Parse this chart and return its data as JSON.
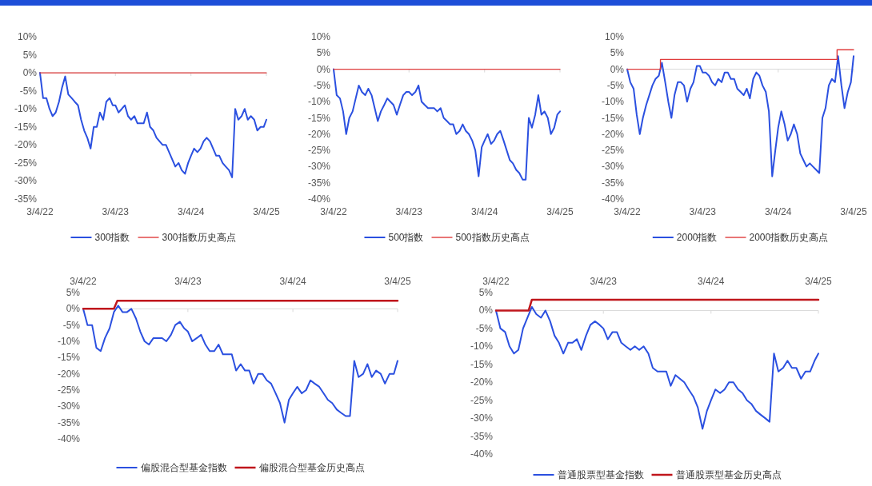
{
  "chart_data": [
    {
      "type": "line",
      "legend": "bottom",
      "x": [
        "2022-03-04",
        "2022-03-19",
        "2022-04-04",
        "2022-04-19",
        "2022-05-04",
        "2022-05-19",
        "2022-06-04",
        "2022-06-19",
        "2022-07-04",
        "2022-07-19",
        "2022-08-04",
        "2022-08-19",
        "2022-09-04",
        "2022-09-19",
        "2022-10-04",
        "2022-10-19",
        "2022-11-04",
        "2022-11-19",
        "2022-12-04",
        "2022-12-19",
        "2023-01-04",
        "2023-01-19",
        "2023-02-04",
        "2023-02-19",
        "2023-03-04",
        "2023-03-19",
        "2023-04-04",
        "2023-04-19",
        "2023-05-04",
        "2023-05-19",
        "2023-06-04",
        "2023-06-19",
        "2023-07-04",
        "2023-07-19",
        "2023-08-04",
        "2023-08-19",
        "2023-09-04",
        "2023-09-19",
        "2023-10-04",
        "2023-10-19",
        "2023-11-04",
        "2023-11-19",
        "2023-12-04",
        "2023-12-19",
        "2024-01-04",
        "2024-01-19",
        "2024-02-04",
        "2024-02-19",
        "2024-03-04",
        "2024-03-19",
        "2024-04-04",
        "2024-04-19",
        "2024-05-04",
        "2024-05-19",
        "2024-06-04",
        "2024-06-19",
        "2024-07-04",
        "2024-07-19",
        "2024-08-04",
        "2024-08-19",
        "2024-09-04",
        "2024-09-19",
        "2024-10-04",
        "2024-10-19",
        "2024-11-04",
        "2024-11-19",
        "2024-12-04",
        "2024-12-19",
        "2025-01-04",
        "2025-01-19",
        "2025-02-04",
        "2025-02-19",
        "2025-03-04"
      ],
      "xlim": [
        "2022-03-04",
        "2025-03-04"
      ],
      "xticks": [
        {
          "value": "2022-03-04",
          "label": "3/4/22"
        },
        {
          "value": "2023-03-04",
          "label": "3/4/23"
        },
        {
          "value": "2024-03-04",
          "label": "3/4/24"
        },
        {
          "value": "2025-03-04",
          "label": "3/4/25"
        }
      ],
      "ylim": [
        -35,
        10
      ],
      "yticks": [
        {
          "value": -35,
          "label": "-35%"
        },
        {
          "value": -30,
          "label": "-30%"
        },
        {
          "value": -25,
          "label": "-25%"
        },
        {
          "value": -20,
          "label": "-20%"
        },
        {
          "value": -15,
          "label": "-15%"
        },
        {
          "value": -10,
          "label": "-10%"
        },
        {
          "value": -5,
          "label": "-5%"
        },
        {
          "value": 0,
          "label": "0%"
        },
        {
          "value": 5,
          "label": "5%"
        },
        {
          "value": 10,
          "label": "10%"
        }
      ],
      "series": [
        {
          "name": "300指数",
          "type": "line",
          "color": "#2b50e0",
          "values": [
            0,
            -7,
            -7,
            -10,
            -12,
            -11,
            -8,
            -4,
            -1,
            -6,
            -7,
            -8,
            -9,
            -13,
            -16,
            -18,
            -21,
            -15,
            -15,
            -11,
            -13,
            -8,
            -7,
            -9,
            -9,
            -11,
            -10,
            -9,
            -12,
            -13,
            -12,
            -14,
            -14,
            -14,
            -11,
            -15,
            -16,
            -18,
            -19,
            -20,
            -20,
            -22,
            -24,
            -26,
            -25,
            -27,
            -28,
            -25,
            -23,
            -21,
            -22,
            -21,
            -19,
            -18,
            -19,
            -21,
            -23,
            -23,
            -25,
            -26,
            -27,
            -29,
            -10,
            -13,
            -12,
            -10,
            -13,
            -12,
            -13,
            -16,
            -15,
            -15,
            -13
          ]
        },
        {
          "name": "300指数历史高点",
          "type": "step",
          "color": "#e03c3c",
          "x": [
            "2022-03-04",
            "2025-03-04"
          ],
          "values": [
            0,
            0
          ]
        }
      ]
    },
    {
      "type": "line",
      "legend": "bottom",
      "x": [
        "2022-03-04",
        "2022-03-19",
        "2022-04-04",
        "2022-04-19",
        "2022-05-04",
        "2022-05-19",
        "2022-06-04",
        "2022-06-19",
        "2022-07-04",
        "2022-07-19",
        "2022-08-04",
        "2022-08-19",
        "2022-09-04",
        "2022-09-19",
        "2022-10-04",
        "2022-10-19",
        "2022-11-04",
        "2022-11-19",
        "2022-12-04",
        "2022-12-19",
        "2023-01-04",
        "2023-01-19",
        "2023-02-04",
        "2023-02-19",
        "2023-03-04",
        "2023-03-19",
        "2023-04-04",
        "2023-04-19",
        "2023-05-04",
        "2023-05-19",
        "2023-06-04",
        "2023-06-19",
        "2023-07-04",
        "2023-07-19",
        "2023-08-04",
        "2023-08-19",
        "2023-09-04",
        "2023-09-19",
        "2023-10-04",
        "2023-10-19",
        "2023-11-04",
        "2023-11-19",
        "2023-12-04",
        "2023-12-19",
        "2024-01-04",
        "2024-01-19",
        "2024-02-04",
        "2024-02-19",
        "2024-03-04",
        "2024-03-19",
        "2024-04-04",
        "2024-04-19",
        "2024-05-04",
        "2024-05-19",
        "2024-06-04",
        "2024-06-19",
        "2024-07-04",
        "2024-07-19",
        "2024-08-04",
        "2024-08-19",
        "2024-09-04",
        "2024-09-19",
        "2024-10-04",
        "2024-10-19",
        "2024-11-04",
        "2024-11-19",
        "2024-12-04",
        "2024-12-19",
        "2025-01-04",
        "2025-01-19",
        "2025-02-04",
        "2025-02-19",
        "2025-03-04"
      ],
      "xlim": [
        "2022-03-04",
        "2025-03-04"
      ],
      "xticks": [
        {
          "value": "2022-03-04",
          "label": "3/4/22"
        },
        {
          "value": "2023-03-04",
          "label": "3/4/23"
        },
        {
          "value": "2024-03-04",
          "label": "3/4/24"
        },
        {
          "value": "2025-03-04",
          "label": "3/4/25"
        }
      ],
      "ylim": [
        -40,
        10
      ],
      "yticks": [
        {
          "value": -40,
          "label": "-40%"
        },
        {
          "value": -35,
          "label": "-35%"
        },
        {
          "value": -30,
          "label": "-30%"
        },
        {
          "value": -25,
          "label": "-25%"
        },
        {
          "value": -20,
          "label": "-20%"
        },
        {
          "value": -15,
          "label": "-15%"
        },
        {
          "value": -10,
          "label": "-10%"
        },
        {
          "value": -5,
          "label": "-5%"
        },
        {
          "value": 0,
          "label": "0%"
        },
        {
          "value": 5,
          "label": "5%"
        },
        {
          "value": 10,
          "label": "10%"
        }
      ],
      "series": [
        {
          "name": "500指数",
          "type": "line",
          "color": "#2b50e0",
          "values": [
            0,
            -8,
            -9,
            -13,
            -20,
            -15,
            -13,
            -9,
            -5,
            -7,
            -8,
            -6,
            -8,
            -12,
            -16,
            -13,
            -11,
            -9,
            -10,
            -11,
            -14,
            -11,
            -8,
            -7,
            -7,
            -8,
            -7,
            -5,
            -10,
            -11,
            -12,
            -12,
            -12,
            -13,
            -12,
            -15,
            -16,
            -17,
            -17,
            -20,
            -19,
            -17,
            -19,
            -20,
            -22,
            -25,
            -33,
            -24,
            -22,
            -20,
            -23,
            -22,
            -20,
            -19,
            -22,
            -25,
            -28,
            -29,
            -31,
            -32,
            -34,
            -34,
            -15,
            -18,
            -14,
            -8,
            -14,
            -13,
            -15,
            -20,
            -18,
            -14,
            -13
          ]
        },
        {
          "name": "500指数历史高点",
          "type": "step",
          "color": "#e03c3c",
          "x": [
            "2022-03-04",
            "2025-03-04"
          ],
          "values": [
            0,
            0
          ]
        }
      ]
    },
    {
      "type": "line",
      "legend": "bottom",
      "x": [
        "2022-03-04",
        "2022-03-19",
        "2022-04-04",
        "2022-04-19",
        "2022-05-04",
        "2022-05-19",
        "2022-06-04",
        "2022-06-19",
        "2022-07-04",
        "2022-07-19",
        "2022-08-04",
        "2022-08-19",
        "2022-09-04",
        "2022-09-19",
        "2022-10-04",
        "2022-10-19",
        "2022-11-04",
        "2022-11-19",
        "2022-12-04",
        "2022-12-19",
        "2023-01-04",
        "2023-01-19",
        "2023-02-04",
        "2023-02-19",
        "2023-03-04",
        "2023-03-19",
        "2023-04-04",
        "2023-04-19",
        "2023-05-04",
        "2023-05-19",
        "2023-06-04",
        "2023-06-19",
        "2023-07-04",
        "2023-07-19",
        "2023-08-04",
        "2023-08-19",
        "2023-09-04",
        "2023-09-19",
        "2023-10-04",
        "2023-10-19",
        "2023-11-04",
        "2023-11-19",
        "2023-12-04",
        "2023-12-19",
        "2024-01-04",
        "2024-01-19",
        "2024-02-04",
        "2024-02-19",
        "2024-03-04",
        "2024-03-19",
        "2024-04-04",
        "2024-04-19",
        "2024-05-04",
        "2024-05-19",
        "2024-06-04",
        "2024-06-19",
        "2024-07-04",
        "2024-07-19",
        "2024-08-04",
        "2024-08-19",
        "2024-09-04",
        "2024-09-19",
        "2024-10-04",
        "2024-10-19",
        "2024-11-04",
        "2024-11-19",
        "2024-12-04",
        "2024-12-19",
        "2025-01-04",
        "2025-01-19",
        "2025-02-04",
        "2025-02-19",
        "2025-03-04"
      ],
      "xlim": [
        "2022-03-04",
        "2025-03-04"
      ],
      "xticks": [
        {
          "value": "2022-03-04",
          "label": "3/4/22"
        },
        {
          "value": "2023-03-04",
          "label": "3/4/23"
        },
        {
          "value": "2024-03-04",
          "label": "3/4/24"
        },
        {
          "value": "2025-03-04",
          "label": "3/4/25"
        }
      ],
      "ylim": [
        -40,
        10
      ],
      "yticks": [
        {
          "value": -40,
          "label": "-40%"
        },
        {
          "value": -35,
          "label": "-35%"
        },
        {
          "value": -30,
          "label": "-30%"
        },
        {
          "value": -25,
          "label": "-25%"
        },
        {
          "value": -20,
          "label": "-20%"
        },
        {
          "value": -15,
          "label": "-15%"
        },
        {
          "value": -10,
          "label": "-10%"
        },
        {
          "value": -5,
          "label": "-5%"
        },
        {
          "value": 0,
          "label": "0%"
        },
        {
          "value": 5,
          "label": "5%"
        },
        {
          "value": 10,
          "label": "10%"
        }
      ],
      "series": [
        {
          "name": "2000指数",
          "type": "line",
          "color": "#2b50e0",
          "values": [
            0,
            -4,
            -6,
            -14,
            -20,
            -15,
            -11,
            -8,
            -5,
            -3,
            -2,
            2,
            -4,
            -10,
            -15,
            -8,
            -4,
            -4,
            -5,
            -10,
            -6,
            -4,
            1,
            1,
            -1,
            -1,
            -2,
            -4,
            -5,
            -3,
            -4,
            -1,
            -1,
            -3,
            -3,
            -6,
            -7,
            -8,
            -6,
            -9,
            -3,
            -1,
            -2,
            -5,
            -7,
            -13,
            -33,
            -25,
            -18,
            -13,
            -17,
            -22,
            -20,
            -17,
            -20,
            -26,
            -28,
            -30,
            -29,
            -30,
            -31,
            -32,
            -15,
            -12,
            -5,
            -3,
            -4,
            4,
            -5,
            -12,
            -7,
            -4,
            4
          ]
        },
        {
          "name": "2000指数历史高点",
          "type": "step",
          "color": "#e03c3c",
          "x": [
            "2022-03-04",
            "2022-08-12",
            "2024-12-14",
            "2025-03-04"
          ],
          "values": [
            0,
            3,
            6,
            6
          ]
        }
      ]
    },
    {
      "type": "line",
      "legend": "bottom",
      "x": [
        "2022-03-04",
        "2022-03-19",
        "2022-04-04",
        "2022-04-19",
        "2022-05-04",
        "2022-05-19",
        "2022-06-04",
        "2022-06-19",
        "2022-07-04",
        "2022-07-19",
        "2022-08-04",
        "2022-08-19",
        "2022-09-04",
        "2022-09-19",
        "2022-10-04",
        "2022-10-19",
        "2022-11-04",
        "2022-11-19",
        "2022-12-04",
        "2022-12-19",
        "2023-01-04",
        "2023-01-19",
        "2023-02-04",
        "2023-02-19",
        "2023-03-04",
        "2023-03-19",
        "2023-04-04",
        "2023-04-19",
        "2023-05-04",
        "2023-05-19",
        "2023-06-04",
        "2023-06-19",
        "2023-07-04",
        "2023-07-19",
        "2023-08-04",
        "2023-08-19",
        "2023-09-04",
        "2023-09-19",
        "2023-10-04",
        "2023-10-19",
        "2023-11-04",
        "2023-11-19",
        "2023-12-04",
        "2023-12-19",
        "2024-01-04",
        "2024-01-19",
        "2024-02-04",
        "2024-02-19",
        "2024-03-04",
        "2024-03-19",
        "2024-04-04",
        "2024-04-19",
        "2024-05-04",
        "2024-05-19",
        "2024-06-04",
        "2024-06-19",
        "2024-07-04",
        "2024-07-19",
        "2024-08-04",
        "2024-08-19",
        "2024-09-04",
        "2024-09-19",
        "2024-10-04",
        "2024-10-19",
        "2024-11-04",
        "2024-11-19",
        "2024-12-04",
        "2024-12-19",
        "2025-01-04",
        "2025-01-19",
        "2025-02-04",
        "2025-02-19",
        "2025-03-04"
      ],
      "xlim": [
        "2022-03-04",
        "2025-03-04"
      ],
      "xticks": [
        {
          "value": "2022-03-04",
          "label": "3/4/22"
        },
        {
          "value": "2023-03-04",
          "label": "3/4/23"
        },
        {
          "value": "2024-03-04",
          "label": "3/4/24"
        },
        {
          "value": "2025-03-04",
          "label": "3/4/25"
        }
      ],
      "ylim": [
        -40,
        5
      ],
      "yticks": [
        {
          "value": -40,
          "label": "-40%"
        },
        {
          "value": -35,
          "label": "-35%"
        },
        {
          "value": -30,
          "label": "-30%"
        },
        {
          "value": -25,
          "label": "-25%"
        },
        {
          "value": -20,
          "label": "-20%"
        },
        {
          "value": -15,
          "label": "-15%"
        },
        {
          "value": -10,
          "label": "-10%"
        },
        {
          "value": -5,
          "label": "-5%"
        },
        {
          "value": 0,
          "label": "0%"
        },
        {
          "value": 5,
          "label": "5%"
        }
      ],
      "series": [
        {
          "name": "偏股混合型基金指数",
          "type": "line",
          "color": "#2b50e0",
          "values": [
            0,
            -5,
            -5,
            -12,
            -13,
            -9,
            -6,
            -1,
            1,
            -1,
            -1,
            0,
            -3,
            -7,
            -10,
            -11,
            -9,
            -9,
            -9,
            -10,
            -8,
            -5,
            -4,
            -6,
            -7,
            -10,
            -9,
            -8,
            -11,
            -13,
            -13,
            -11,
            -14,
            -14,
            -14,
            -19,
            -17,
            -19,
            -19,
            -23,
            -20,
            -20,
            -22,
            -23,
            -26,
            -29,
            -35,
            -28,
            -26,
            -24,
            -26,
            -25,
            -22,
            -23,
            -24,
            -26,
            -28,
            -29,
            -31,
            -32,
            -33,
            -33,
            -16,
            -21,
            -20,
            -17,
            -21,
            -19,
            -20,
            -23,
            -20,
            -20,
            -16
          ]
        },
        {
          "name": "偏股混合型基金历史高点",
          "type": "line",
          "color": "#c0161c",
          "x": [
            "2022-03-04",
            "2022-06-19",
            "2022-07-01",
            "2025-03-04"
          ],
          "values": [
            0,
            0,
            2.5,
            2.5
          ]
        }
      ]
    },
    {
      "type": "line",
      "legend": "bottom",
      "x": [
        "2022-03-04",
        "2022-03-19",
        "2022-04-04",
        "2022-04-19",
        "2022-05-04",
        "2022-05-19",
        "2022-06-04",
        "2022-06-19",
        "2022-07-04",
        "2022-07-19",
        "2022-08-04",
        "2022-08-19",
        "2022-09-04",
        "2022-09-19",
        "2022-10-04",
        "2022-10-19",
        "2022-11-04",
        "2022-11-19",
        "2022-12-04",
        "2022-12-19",
        "2023-01-04",
        "2023-01-19",
        "2023-02-04",
        "2023-02-19",
        "2023-03-04",
        "2023-03-19",
        "2023-04-04",
        "2023-04-19",
        "2023-05-04",
        "2023-05-19",
        "2023-06-04",
        "2023-06-19",
        "2023-07-04",
        "2023-07-19",
        "2023-08-04",
        "2023-08-19",
        "2023-09-04",
        "2023-09-19",
        "2023-10-04",
        "2023-10-19",
        "2023-11-04",
        "2023-11-19",
        "2023-12-04",
        "2023-12-19",
        "2024-01-04",
        "2024-01-19",
        "2024-02-04",
        "2024-02-19",
        "2024-03-04",
        "2024-03-19",
        "2024-04-04",
        "2024-04-19",
        "2024-05-04",
        "2024-05-19",
        "2024-06-04",
        "2024-06-19",
        "2024-07-04",
        "2024-07-19",
        "2024-08-04",
        "2024-08-19",
        "2024-09-04",
        "2024-09-19",
        "2024-10-04",
        "2024-10-19",
        "2024-11-04",
        "2024-11-19",
        "2024-12-04",
        "2024-12-19",
        "2025-01-04",
        "2025-01-19",
        "2025-02-04",
        "2025-02-19",
        "2025-03-04"
      ],
      "xlim": [
        "2022-03-04",
        "2025-03-04"
      ],
      "xticks": [
        {
          "value": "2022-03-04",
          "label": "3/4/22"
        },
        {
          "value": "2023-03-04",
          "label": "3/4/23"
        },
        {
          "value": "2024-03-04",
          "label": "3/4/24"
        },
        {
          "value": "2025-03-04",
          "label": "3/4/25"
        }
      ],
      "ylim": [
        -40,
        5
      ],
      "yticks": [
        {
          "value": -40,
          "label": "-40%"
        },
        {
          "value": -35,
          "label": "-35%"
        },
        {
          "value": -30,
          "label": "-30%"
        },
        {
          "value": -25,
          "label": "-25%"
        },
        {
          "value": -20,
          "label": "-20%"
        },
        {
          "value": -15,
          "label": "-15%"
        },
        {
          "value": -10,
          "label": "-10%"
        },
        {
          "value": -5,
          "label": "-5%"
        },
        {
          "value": 0,
          "label": "0%"
        },
        {
          "value": 5,
          "label": "5%"
        }
      ],
      "series": [
        {
          "name": "普通股票型基金指数",
          "type": "line",
          "color": "#2b50e0",
          "values": [
            0,
            -5,
            -6,
            -10,
            -12,
            -11,
            -5,
            -2,
            1,
            -1,
            -2,
            0,
            -3,
            -7,
            -9,
            -12,
            -9,
            -9,
            -8,
            -11,
            -7,
            -4,
            -3,
            -4,
            -5,
            -8,
            -6,
            -6,
            -9,
            -10,
            -11,
            -10,
            -11,
            -10,
            -12,
            -16,
            -17,
            -17,
            -17,
            -21,
            -18,
            -19,
            -20,
            -22,
            -24,
            -27,
            -33,
            -28,
            -25,
            -22,
            -23,
            -22,
            -20,
            -20,
            -22,
            -23,
            -25,
            -26,
            -28,
            -29,
            -30,
            -31,
            -12,
            -17,
            -16,
            -14,
            -16,
            -16,
            -19,
            -17,
            -17,
            -14,
            -12
          ]
        },
        {
          "name": "普通股票型基金历史高点",
          "type": "line",
          "color": "#c0161c",
          "x": [
            "2022-03-04",
            "2022-06-23",
            "2022-07-04",
            "2025-03-04"
          ],
          "values": [
            0,
            0,
            3,
            3
          ]
        }
      ]
    }
  ]
}
